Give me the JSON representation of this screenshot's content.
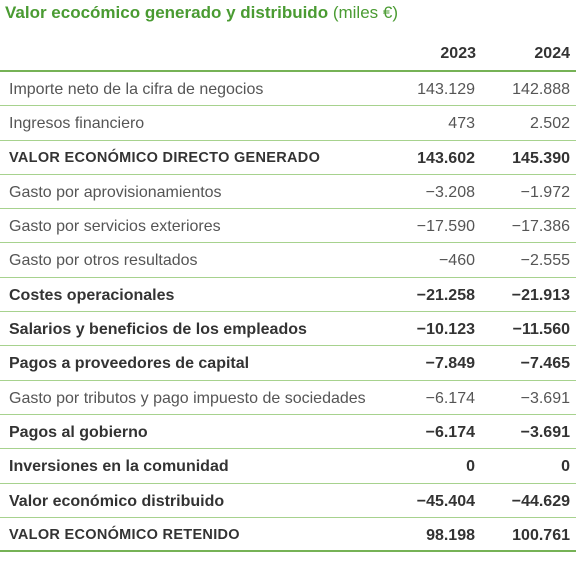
{
  "title": {
    "bold": "Valor ecocómico generado y distribuido",
    "unit": "(miles €)"
  },
  "columns": [
    "2023",
    "2024"
  ],
  "rows": [
    {
      "label": "Importe neto de la cifra de negocios",
      "v2023": "143.129",
      "v2024": "142.888",
      "bold": false
    },
    {
      "label": "Ingresos financiero",
      "v2023": "473",
      "v2024": "2.502",
      "bold": false
    },
    {
      "label": "VALOR ECONÓMICO DIRECTO GENERADO",
      "v2023": "143.602",
      "v2024": "145.390",
      "bold": true
    },
    {
      "label": "Gasto por aprovisionamientos",
      "v2023": "−3.208",
      "v2024": "−1.972",
      "bold": false
    },
    {
      "label": "Gasto por servicios exteriores",
      "v2023": "−17.590",
      "v2024": "−17.386",
      "bold": false
    },
    {
      "label": "Gasto por otros resultados",
      "v2023": "−460",
      "v2024": "−2.555",
      "bold": false
    },
    {
      "label": "Costes operacionales",
      "v2023": "−21.258",
      "v2024": "−21.913",
      "bold": true
    },
    {
      "label": "Salarios y beneficios de los empleados",
      "v2023": "−10.123",
      "v2024": "−11.560",
      "bold": true
    },
    {
      "label": "Pagos a proveedores de capital",
      "v2023": "−7.849",
      "v2024": "−7.465",
      "bold": true
    },
    {
      "label": "Gasto por tributos y pago impuesto de sociedades",
      "v2023": "−6.174",
      "v2024": "−3.691",
      "bold": false
    },
    {
      "label": "Pagos al gobierno",
      "v2023": "−6.174",
      "v2024": "−3.691",
      "bold": true
    },
    {
      "label": "Inversiones en la comunidad",
      "v2023": "0",
      "v2024": "0",
      "bold": true
    },
    {
      "label": "Valor económico distribuido",
      "v2023": "−45.404",
      "v2024": "−44.629",
      "bold": true
    },
    {
      "label": "VALOR ECONÓMICO RETENIDO",
      "v2023": "98.198",
      "v2024": "100.761",
      "bold": true
    }
  ],
  "colors": {
    "accent": "#4a9b32",
    "rule": "#76b256",
    "rowLine": "#a7d28e"
  }
}
